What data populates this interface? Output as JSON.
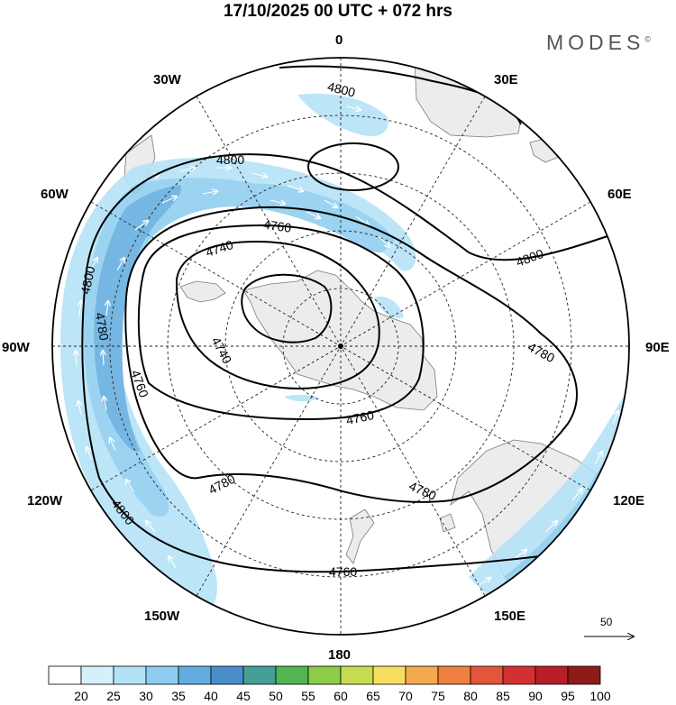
{
  "title": "17/10/2025  00 UTC  + 072 hrs",
  "brand": "MODES",
  "brand_mark": "©",
  "longitude_labels": [
    {
      "text": "0",
      "lon": 0
    },
    {
      "text": "30E",
      "lon": 30
    },
    {
      "text": "60E",
      "lon": 60
    },
    {
      "text": "90E",
      "lon": 90
    },
    {
      "text": "120E",
      "lon": 120
    },
    {
      "text": "150E",
      "lon": 150
    },
    {
      "text": "180",
      "lon": 180
    },
    {
      "text": "150W",
      "lon": 210
    },
    {
      "text": "120W",
      "lon": 240
    },
    {
      "text": "90W",
      "lon": 270
    },
    {
      "text": "60W",
      "lon": 300
    },
    {
      "text": "30W",
      "lon": 330
    }
  ],
  "contour_labels": [
    "4800",
    "4800",
    "4760",
    "4740",
    "4740",
    "4760",
    "4760",
    "4780",
    "4780",
    "4780",
    "4800",
    "4800",
    "4800",
    "4780",
    "4760"
  ],
  "vector_reference": {
    "label": "50"
  },
  "colorbar": {
    "labels": [
      "20",
      "25",
      "30",
      "35",
      "40",
      "45",
      "50",
      "55",
      "60",
      "65",
      "70",
      "75",
      "80",
      "85",
      "90",
      "95",
      "100"
    ],
    "colors": [
      "#ffffff",
      "#d3f0fb",
      "#b3e2f7",
      "#8ecdf0",
      "#64ace0",
      "#4a8fcc",
      "#44a096",
      "#52b552",
      "#8ccc48",
      "#c7dc50",
      "#f6df5e",
      "#f5a94e",
      "#ef8040",
      "#e4553a",
      "#d33131",
      "#b81f29",
      "#8f1a1a"
    ]
  }
}
